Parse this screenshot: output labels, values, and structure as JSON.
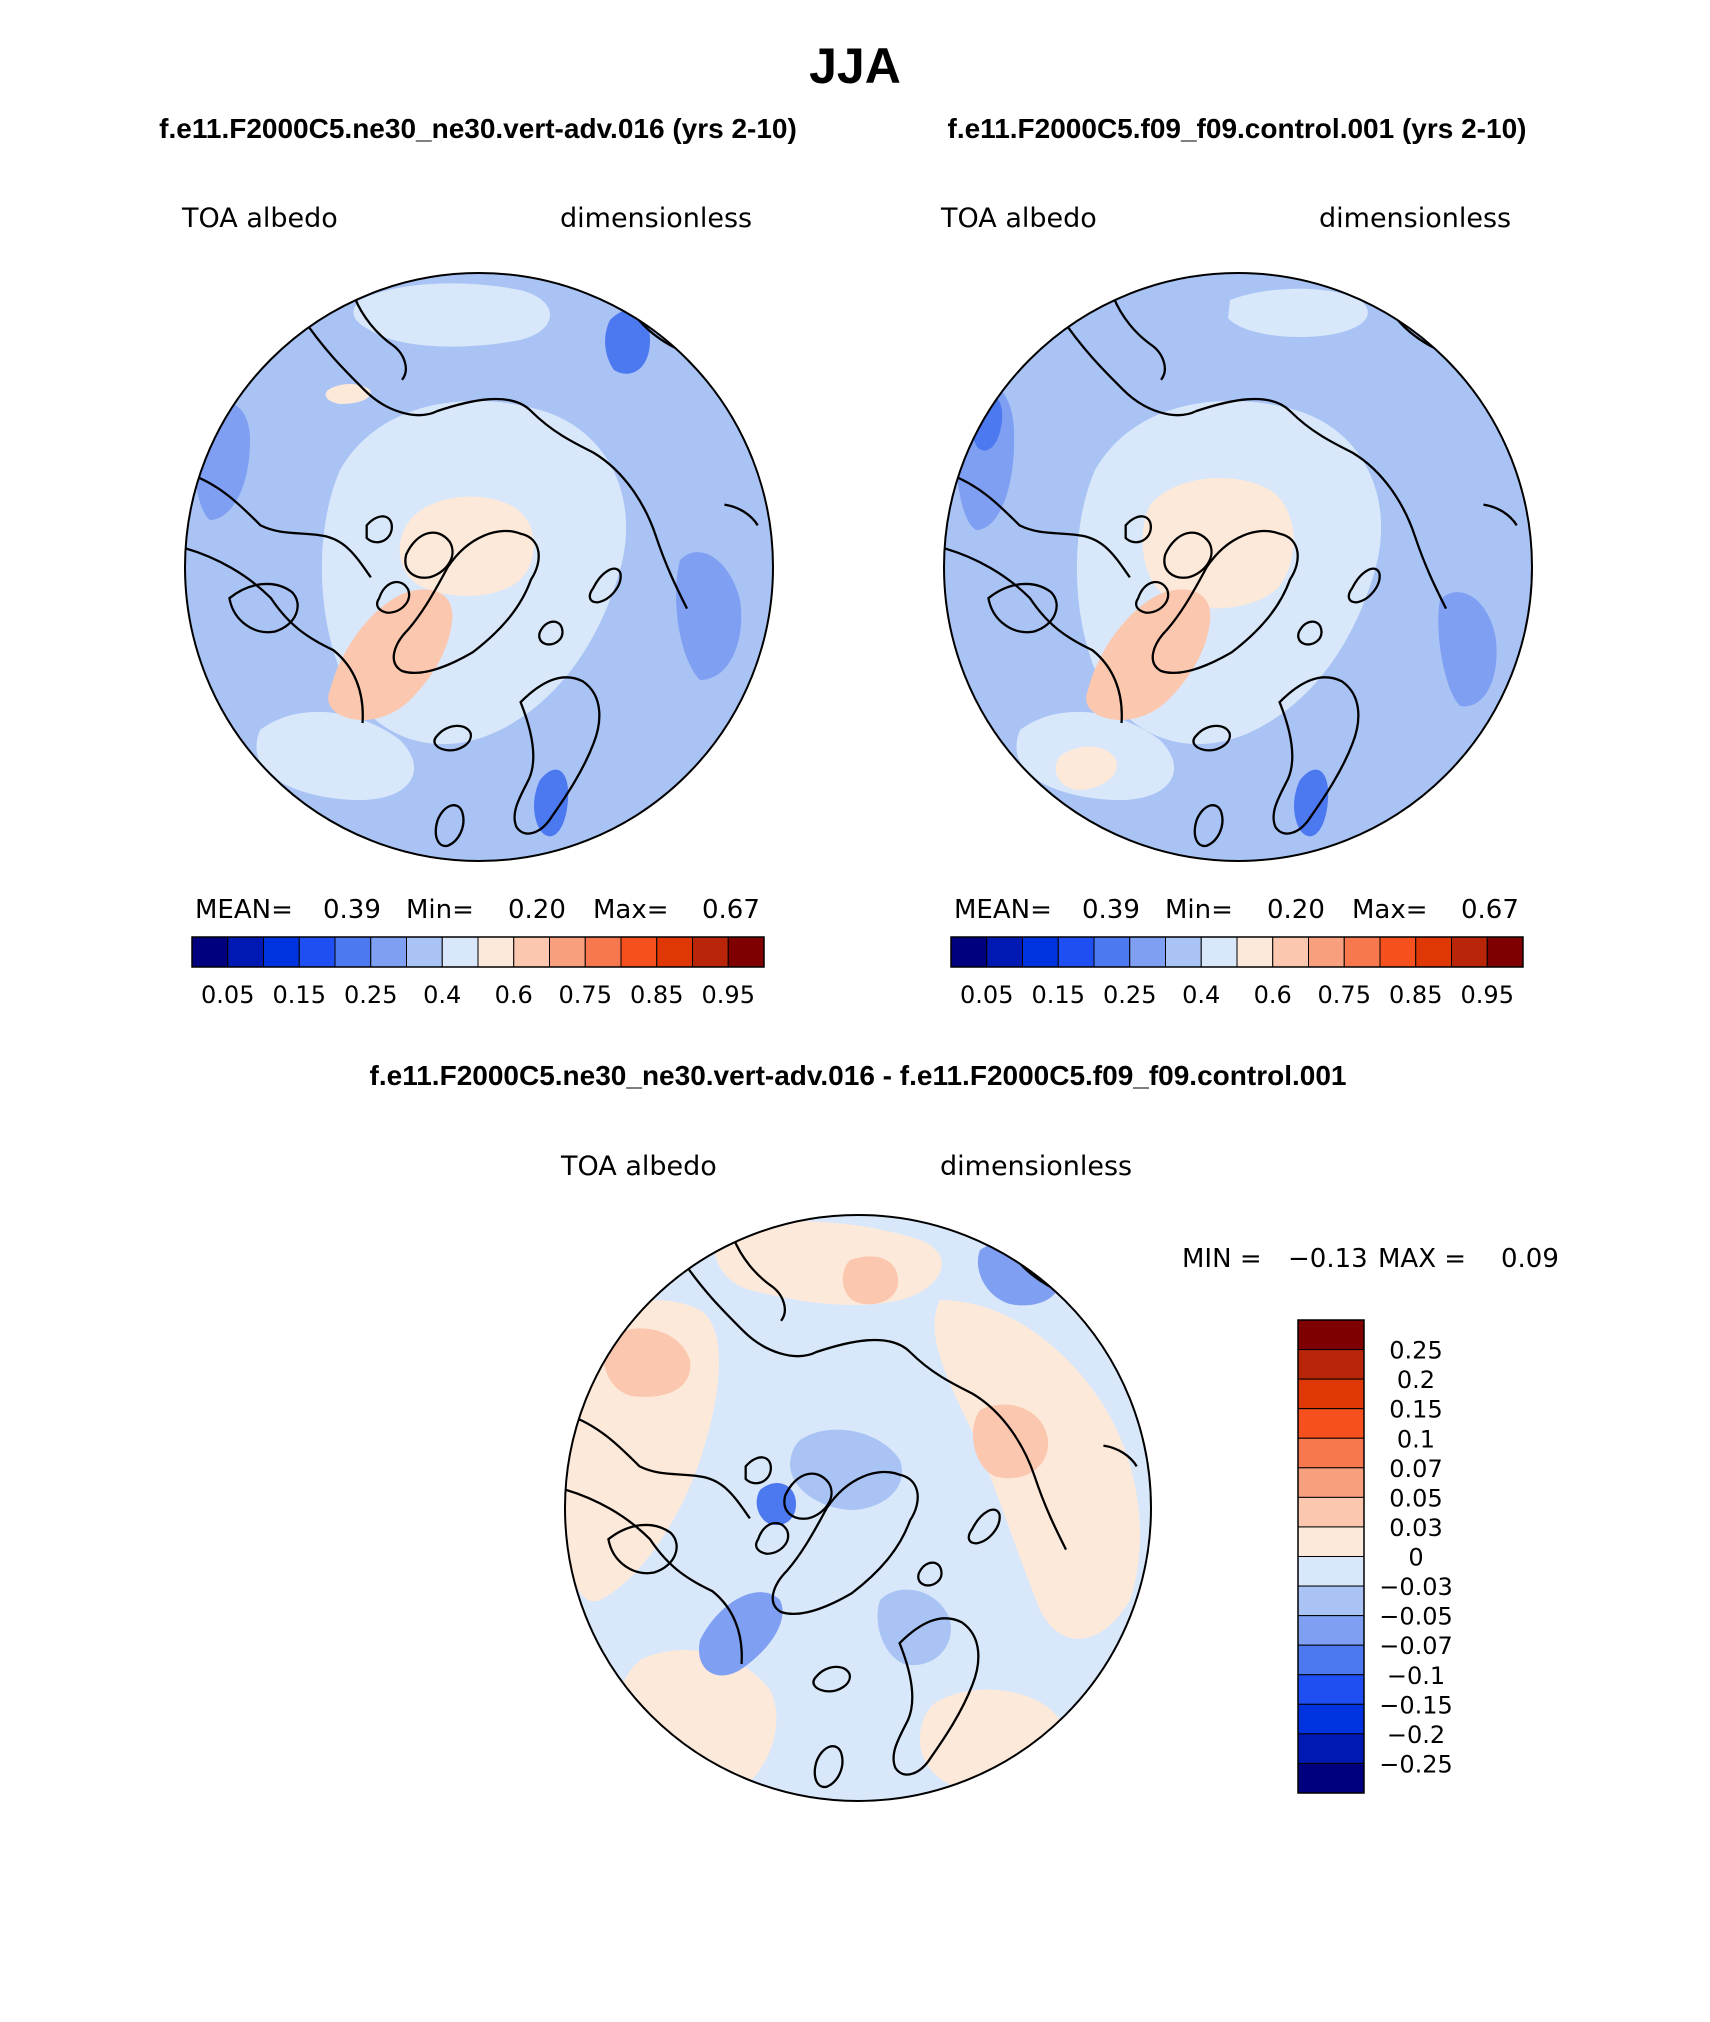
{
  "figure": {
    "season": "JJA",
    "variable": "TOA albedo",
    "units": "dimensionless"
  },
  "panels": [
    {
      "id": "test",
      "title": "f.e11.F2000C5.ne30_ne30.vert-adv.016 (yrs 2-10)",
      "variable": "TOA albedo",
      "units": "dimensionless",
      "stats": {
        "mean_label": "MEAN=",
        "mean": "0.39",
        "min_label": "Min=",
        "min": "0.20",
        "max_label": "Max=",
        "max": "0.67"
      }
    },
    {
      "id": "control",
      "title": "f.e11.F2000C5.f09_f09.control.001 (yrs 2-10)",
      "variable": "TOA albedo",
      "units": "dimensionless",
      "stats": {
        "mean_label": "MEAN=",
        "mean": "0.39",
        "min_label": "Min=",
        "min": "0.20",
        "max_label": "Max=",
        "max": "0.67"
      }
    },
    {
      "id": "difference",
      "title": "f.e11.F2000C5.ne30_ne30.vert-adv.016 - f.e11.F2000C5.f09_f09.control.001",
      "variable": "TOA albedo",
      "units": "dimensionless",
      "stats": {
        "min_label": "MIN =",
        "min": "−0.13",
        "max_label": "MAX =",
        "max": "0.09"
      }
    }
  ],
  "colorbar_abs": {
    "colors": [
      "#00007f",
      "#0019b2",
      "#0033e0",
      "#1f4ff2",
      "#4c78f0",
      "#7f9ff2",
      "#a9c3f5",
      "#d8e8fa",
      "#fde9da",
      "#fbc7ae",
      "#f8a07e",
      "#f7784e",
      "#f6501f",
      "#e03707",
      "#b82508",
      "#7f0000"
    ],
    "tick_labels": [
      "0.05",
      "0.15",
      "0.25",
      "0.4",
      "0.6",
      "0.75",
      "0.85",
      "0.95"
    ]
  },
  "colorbar_diff": {
    "colors": [
      "#7f0000",
      "#b82508",
      "#e03707",
      "#f6501f",
      "#f7784e",
      "#f8a07e",
      "#fbc7ae",
      "#fde9da",
      "#d8e8fa",
      "#a9c3f5",
      "#7f9ff2",
      "#4c78f0",
      "#1f4ff2",
      "#0033e0",
      "#0019b2",
      "#00007f"
    ],
    "tick_labels": [
      "0.25",
      "0.2",
      "0.15",
      "0.1",
      "0.07",
      "0.05",
      "0.03",
      "0",
      "−0.03",
      "−0.05",
      "−0.07",
      "−0.1",
      "−0.15",
      "−0.2",
      "−0.25"
    ]
  },
  "map_colors": {
    "abs_background": "#a9c3f5",
    "abs_light": "#d8e8fa",
    "abs_mid": "#7f9ff2",
    "abs_dark": "#4c78f0",
    "abs_warm": "#fde9da",
    "abs_warm2": "#fbc7ae",
    "diff_background": "#d8e8fa",
    "diff_warm": "#fde9da",
    "diff_warm2": "#fbc7ae",
    "diff_cool": "#a9c3f5",
    "diff_cool2": "#7f9ff2",
    "diff_cool3": "#4c78f0",
    "coast": "#000000"
  }
}
